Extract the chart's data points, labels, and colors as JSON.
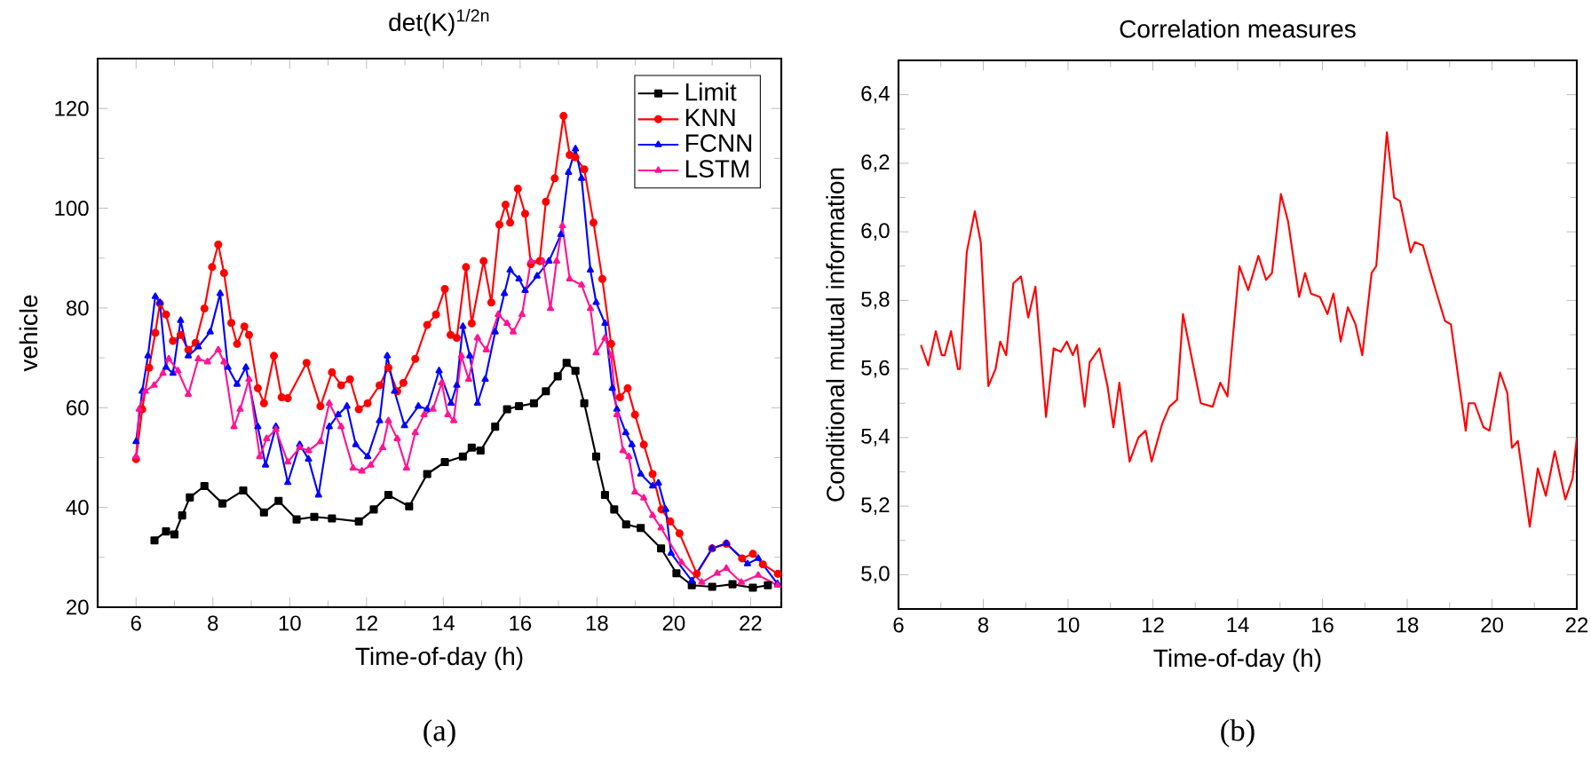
{
  "chart_data": [
    {
      "type": "line",
      "title": "det(K)$^{1/2n}$",
      "xlabel": "Time-of-day (h)",
      "ylabel": "vehicle",
      "xlim": [
        5,
        22.8
      ],
      "ylim": [
        20,
        130
      ],
      "xticks": [
        6,
        8,
        10,
        12,
        14,
        16,
        18,
        20,
        22
      ],
      "yticks": [
        20,
        40,
        60,
        80,
        100,
        120
      ],
      "grid": false,
      "legend": "top right",
      "annotations": [
        "(a)"
      ],
      "series": [
        {
          "name": "Limit",
          "color": "#000000",
          "marker": "square",
          "x": [
            6.48,
            6.78,
            7.0,
            7.2,
            7.4,
            7.78,
            8.25,
            8.79,
            9.33,
            9.71,
            10.18,
            10.64,
            11.1,
            11.8,
            12.19,
            12.57,
            13.11,
            13.58,
            14.04,
            14.51,
            14.74,
            14.97,
            15.35,
            15.66,
            15.97,
            16.36,
            16.67,
            16.98,
            17.21,
            17.44,
            17.67,
            17.98,
            18.21,
            18.45,
            18.76,
            19.14,
            19.67,
            20.07,
            20.47,
            21.0,
            21.53,
            22.06,
            22.45
          ],
          "values": [
            33.4,
            35.2,
            34.6,
            38.4,
            42,
            44.3,
            40.8,
            43.4,
            39,
            41.3,
            37.6,
            38.1,
            37.8,
            37.2,
            39.6,
            42.5,
            40.2,
            46.7,
            49.1,
            50.2,
            52,
            51.4,
            56.2,
            59.7,
            60.3,
            60.9,
            63.3,
            66.3,
            69,
            67.4,
            60.9,
            50.2,
            42.5,
            39.6,
            36.6,
            35.9,
            31.8,
            26.8,
            24.4,
            24.1,
            24.6,
            23.9,
            24.4
          ]
        },
        {
          "name": "KNN",
          "color": "#ff0000",
          "marker": "circle",
          "x": [
            6.0,
            6.16,
            6.34,
            6.5,
            6.62,
            6.78,
            6.96,
            7.16,
            7.36,
            7.55,
            7.78,
            7.98,
            8.14,
            8.29,
            8.48,
            8.63,
            8.82,
            8.94,
            9.17,
            9.33,
            9.59,
            9.79,
            9.95,
            10.44,
            10.8,
            11.1,
            11.34,
            11.57,
            11.8,
            12.03,
            12.34,
            12.57,
            12.8,
            12.96,
            13.27,
            13.58,
            13.81,
            14.04,
            14.19,
            14.35,
            14.59,
            14.74,
            15.05,
            15.25,
            15.46,
            15.62,
            15.74,
            15.94,
            16.13,
            16.28,
            16.51,
            16.67,
            16.9,
            17.13,
            17.29,
            17.44,
            17.67,
            17.91,
            18.14,
            18.37,
            18.6,
            18.8,
            18.99,
            19.22,
            19.45,
            19.68,
            19.91,
            20.15,
            20.6,
            21.0,
            21.37,
            21.78,
            22.06,
            22.32,
            22.71
          ],
          "values": [
            49.7,
            59.7,
            68,
            75,
            80.9,
            78.7,
            73.4,
            74.6,
            71.6,
            73,
            79.9,
            88.2,
            92.7,
            87,
            77,
            72.8,
            76.3,
            74.6,
            63.9,
            60.9,
            70.4,
            62.1,
            61.9,
            69,
            60.3,
            67.1,
            64.5,
            65.7,
            59.7,
            60.9,
            64.5,
            68,
            63.3,
            65,
            69.8,
            76.6,
            78.7,
            83.8,
            74.6,
            74,
            88.2,
            76.9,
            89.4,
            81.1,
            96.7,
            100.7,
            97.1,
            103.9,
            98.9,
            88.8,
            89.4,
            101.3,
            106,
            118.5,
            110.7,
            110.2,
            107.8,
            97.1,
            85.8,
            72.8,
            62.1,
            63.9,
            58.6,
            52.6,
            46.7,
            39.6,
            37.2,
            34.8,
            26.7,
            31.8,
            32.7,
            29.8,
            30.7,
            28.6,
            26.7
          ]
        },
        {
          "name": "FCNN",
          "color": "#0000ff",
          "marker": "triangle",
          "x": [
            6.0,
            6.16,
            6.31,
            6.5,
            6.62,
            6.78,
            6.96,
            7.16,
            7.36,
            7.62,
            7.93,
            8.19,
            8.39,
            8.63,
            8.86,
            9.17,
            9.37,
            9.64,
            9.95,
            10.26,
            10.49,
            10.75,
            11.03,
            11.26,
            11.49,
            11.72,
            12.03,
            12.34,
            12.54,
            12.73,
            12.99,
            13.35,
            13.58,
            13.89,
            14.2,
            14.35,
            14.51,
            14.69,
            14.89,
            15.09,
            15.35,
            15.59,
            15.74,
            15.97,
            16.13,
            16.44,
            16.75,
            17.06,
            17.26,
            17.44,
            17.6,
            17.83,
            17.98,
            18.21,
            18.4,
            18.52,
            18.75,
            18.91,
            19.14,
            19.45,
            19.6,
            19.79,
            19.93,
            20.47,
            21.0,
            21.37,
            21.92,
            22.2,
            22.7
          ],
          "values": [
            53.2,
            63.3,
            70.4,
            82.3,
            81.1,
            68.1,
            66.9,
            77.5,
            70.4,
            72.2,
            75.2,
            82.9,
            68.1,
            64.7,
            68.1,
            56.2,
            48.5,
            56.2,
            45,
            52.6,
            49.7,
            42.5,
            56.2,
            58.6,
            60.3,
            52.6,
            50.2,
            57.4,
            70.4,
            63.3,
            56.4,
            60.3,
            59.7,
            67.4,
            60.9,
            64.5,
            76.3,
            70.4,
            60.9,
            65.7,
            75.2,
            82.9,
            87.6,
            85.8,
            83.5,
            86.4,
            89.4,
            94.7,
            107.2,
            111.9,
            106,
            87.6,
            81.1,
            76.9,
            63.9,
            59.7,
            55,
            52.6,
            46.7,
            44.3,
            44.9,
            39.6,
            30.8,
            25.3,
            31.8,
            32.8,
            28.7,
            29.8,
            24.7
          ]
        },
        {
          "name": "LSTM",
          "color": "#ff1493",
          "marker": "triangle",
          "x": [
            6.0,
            6.08,
            6.24,
            6.47,
            6.7,
            6.85,
            7.09,
            7.36,
            7.62,
            7.86,
            8.14,
            8.29,
            8.55,
            8.71,
            8.94,
            9.22,
            9.4,
            9.64,
            9.95,
            10.26,
            10.49,
            10.8,
            11.03,
            11.34,
            11.65,
            11.88,
            12.11,
            12.42,
            12.57,
            12.8,
            13.04,
            13.27,
            13.5,
            13.73,
            13.96,
            14.12,
            14.27,
            14.47,
            14.66,
            14.89,
            15.12,
            15.43,
            15.66,
            15.82,
            16.05,
            16.28,
            16.59,
            16.79,
            16.95,
            17.1,
            17.29,
            17.6,
            17.83,
            17.98,
            18.21,
            18.37,
            18.52,
            18.68,
            18.83,
            18.99,
            19.22,
            19.45,
            19.67,
            20.2,
            20.73,
            21.13,
            21.37,
            21.76,
            22.2,
            22.7
          ],
          "values": [
            50.2,
            59.7,
            63.3,
            64.5,
            66.9,
            69.8,
            67.4,
            62.7,
            69.8,
            69.2,
            71.6,
            69.2,
            56.2,
            59.7,
            65.7,
            50.2,
            53.8,
            55.6,
            49.1,
            52,
            51.4,
            53.2,
            60.9,
            56.2,
            47.9,
            47.3,
            48.5,
            52,
            57.4,
            53.8,
            47.9,
            55,
            58.6,
            59.7,
            65,
            58.6,
            57.4,
            70.4,
            65.7,
            74,
            71.6,
            78.7,
            76.9,
            75.2,
            78.7,
            89.4,
            89.4,
            79.9,
            89.4,
            96.5,
            85.8,
            84.6,
            79.9,
            71,
            74,
            70.4,
            58.6,
            51.4,
            50.2,
            43.1,
            41.9,
            38.4,
            35.9,
            29,
            25,
            26.8,
            27.8,
            25,
            26.4,
            24.4
          ]
        }
      ]
    },
    {
      "type": "line",
      "title": "Correlation measures",
      "xlabel": "Time-of-day (h)",
      "ylabel": "Conditional mutual information",
      "xlim": [
        6,
        22
      ],
      "ylim": [
        4.9,
        6.5
      ],
      "xticks": [
        6,
        8,
        10,
        12,
        14,
        16,
        18,
        20,
        22
      ],
      "yticks": [
        {
          "value": 5.0,
          "label": "5,0"
        },
        {
          "value": 5.2,
          "label": "5,2"
        },
        {
          "value": 5.4,
          "label": "5,4"
        },
        {
          "value": 5.6,
          "label": "5,6"
        },
        {
          "value": 5.8,
          "label": "5,8"
        },
        {
          "value": 6.0,
          "label": "6,0"
        },
        {
          "value": 6.2,
          "label": "6,2"
        },
        {
          "value": 6.4,
          "label": "6,4"
        }
      ],
      "grid": false,
      "annotations": [
        "(b)"
      ],
      "series": [
        {
          "color": "#ff0000",
          "x": [
            6.53,
            6.7,
            6.88,
            7.02,
            7.09,
            7.24,
            7.4,
            7.45,
            7.61,
            7.8,
            7.94,
            8.12,
            8.29,
            8.4,
            8.54,
            8.71,
            8.89,
            9.06,
            9.23,
            9.48,
            9.66,
            9.83,
            9.97,
            10.11,
            10.21,
            10.39,
            10.51,
            10.74,
            10.93,
            11.07,
            11.21,
            11.45,
            11.66,
            11.83,
            11.97,
            12.22,
            12.39,
            12.57,
            12.71,
            13.13,
            13.41,
            13.59,
            13.76,
            14.04,
            14.25,
            14.49,
            14.67,
            14.81,
            15.02,
            15.19,
            15.45,
            15.59,
            15.73,
            15.94,
            16.12,
            16.26,
            16.43,
            16.6,
            16.78,
            16.94,
            17.16,
            17.27,
            17.52,
            17.69,
            17.83,
            18.08,
            18.18,
            18.37,
            18.53,
            18.67,
            18.89,
            19.03,
            19.21,
            19.38,
            19.45,
            19.59,
            19.8,
            19.94,
            20.19,
            20.36,
            20.47,
            20.61,
            20.89,
            21.08,
            21.27,
            21.48,
            21.73,
            21.9,
            22.0
          ],
          "values": [
            5.67,
            5.61,
            5.71,
            5.64,
            5.64,
            5.71,
            5.6,
            5.6,
            5.94,
            6.06,
            5.97,
            5.55,
            5.6,
            5.68,
            5.64,
            5.85,
            5.87,
            5.75,
            5.84,
            5.46,
            5.66,
            5.65,
            5.68,
            5.64,
            5.67,
            5.49,
            5.62,
            5.66,
            5.55,
            5.43,
            5.56,
            5.33,
            5.4,
            5.42,
            5.33,
            5.44,
            5.49,
            5.51,
            5.76,
            5.5,
            5.49,
            5.56,
            5.52,
            5.9,
            5.83,
            5.93,
            5.86,
            5.88,
            6.11,
            6.03,
            5.81,
            5.88,
            5.82,
            5.81,
            5.76,
            5.82,
            5.68,
            5.78,
            5.73,
            5.64,
            5.88,
            5.9,
            6.29,
            6.1,
            6.09,
            5.94,
            5.97,
            5.96,
            5.89,
            5.83,
            5.74,
            5.73,
            5.57,
            5.42,
            5.5,
            5.5,
            5.43,
            5.42,
            5.59,
            5.53,
            5.37,
            5.39,
            5.14,
            5.31,
            5.23,
            5.36,
            5.22,
            5.28,
            5.4
          ]
        }
      ]
    }
  ]
}
